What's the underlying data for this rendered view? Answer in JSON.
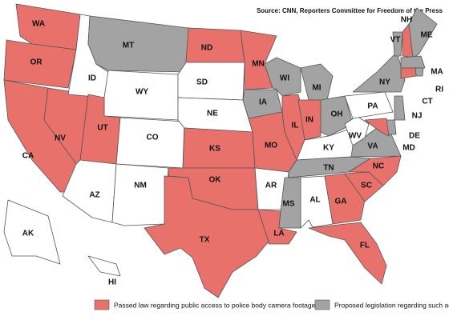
{
  "source": "Source: CNN, Reporters Committee for Freedom of the Press",
  "legend": [
    {
      "label": "Passed law regarding public access to police body camera footage",
      "color": "#e8726b"
    },
    {
      "label": "Proposed legislation regarding such access",
      "color": "#a3a3a3"
    }
  ],
  "states": [
    {
      "label": "WA",
      "color": "#e8726b"
    },
    {
      "label": "OR",
      "color": "#e8726b"
    },
    {
      "label": "CA",
      "color": "#e8726b"
    },
    {
      "label": "NV",
      "color": "#e8726b"
    },
    {
      "label": "ID",
      "color": "#ffffff"
    },
    {
      "label": "MT",
      "color": "#a3a3a3"
    },
    {
      "label": "WY",
      "color": "#ffffff"
    },
    {
      "label": "UT",
      "color": "#e8726b"
    },
    {
      "label": "CO",
      "color": "#ffffff"
    },
    {
      "label": "AZ",
      "color": "#ffffff"
    },
    {
      "label": "NM",
      "color": "#ffffff"
    },
    {
      "label": "ND",
      "color": "#e8726b"
    },
    {
      "label": "SD",
      "color": "#ffffff"
    },
    {
      "label": "NE",
      "color": "#ffffff"
    },
    {
      "label": "KS",
      "color": "#e8726b"
    },
    {
      "label": "OK",
      "color": "#e8726b"
    },
    {
      "label": "TX",
      "color": "#e8726b"
    },
    {
      "label": "MN",
      "color": "#e8726b"
    },
    {
      "label": "IA",
      "color": "#a3a3a3"
    },
    {
      "label": "MO",
      "color": "#e8726b"
    },
    {
      "label": "AR",
      "color": "#ffffff"
    },
    {
      "label": "LA",
      "color": "#e8726b"
    },
    {
      "label": "WI",
      "color": "#a3a3a3"
    },
    {
      "label": "IL",
      "color": "#e8726b"
    },
    {
      "label": "MI",
      "color": "#a3a3a3"
    },
    {
      "label": "IN",
      "color": "#e8726b"
    },
    {
      "label": "OH",
      "color": "#a3a3a3"
    },
    {
      "label": "KY",
      "color": "#ffffff"
    },
    {
      "label": "TN",
      "color": "#a3a3a3"
    },
    {
      "label": "MS",
      "color": "#a3a3a3"
    },
    {
      "label": "AL",
      "color": "#ffffff"
    },
    {
      "label": "GA",
      "color": "#e8726b"
    },
    {
      "label": "FL",
      "color": "#e8726b"
    },
    {
      "label": "SC",
      "color": "#e8726b"
    },
    {
      "label": "NC",
      "color": "#e8726b"
    },
    {
      "label": "VA",
      "color": "#a3a3a3"
    },
    {
      "label": "WV",
      "color": "#ffffff"
    },
    {
      "label": "PA",
      "color": "#ffffff"
    },
    {
      "label": "NY",
      "color": "#a3a3a3"
    },
    {
      "label": "VT",
      "color": "#a3a3a3"
    },
    {
      "label": "NH",
      "color": "#e8726b"
    },
    {
      "label": "ME",
      "color": "#a3a3a3"
    },
    {
      "label": "MA",
      "color": "#a3a3a3"
    },
    {
      "label": "RI",
      "color": "#a3a3a3"
    },
    {
      "label": "CT",
      "color": "#e8726b"
    },
    {
      "label": "NJ",
      "color": "#a3a3a3"
    },
    {
      "label": "DE",
      "color": "#a3a3a3"
    },
    {
      "label": "MD",
      "color": "#e8726b"
    },
    {
      "label": "AK",
      "color": "#ffffff"
    },
    {
      "label": "HI",
      "color": "#ffffff"
    }
  ]
}
